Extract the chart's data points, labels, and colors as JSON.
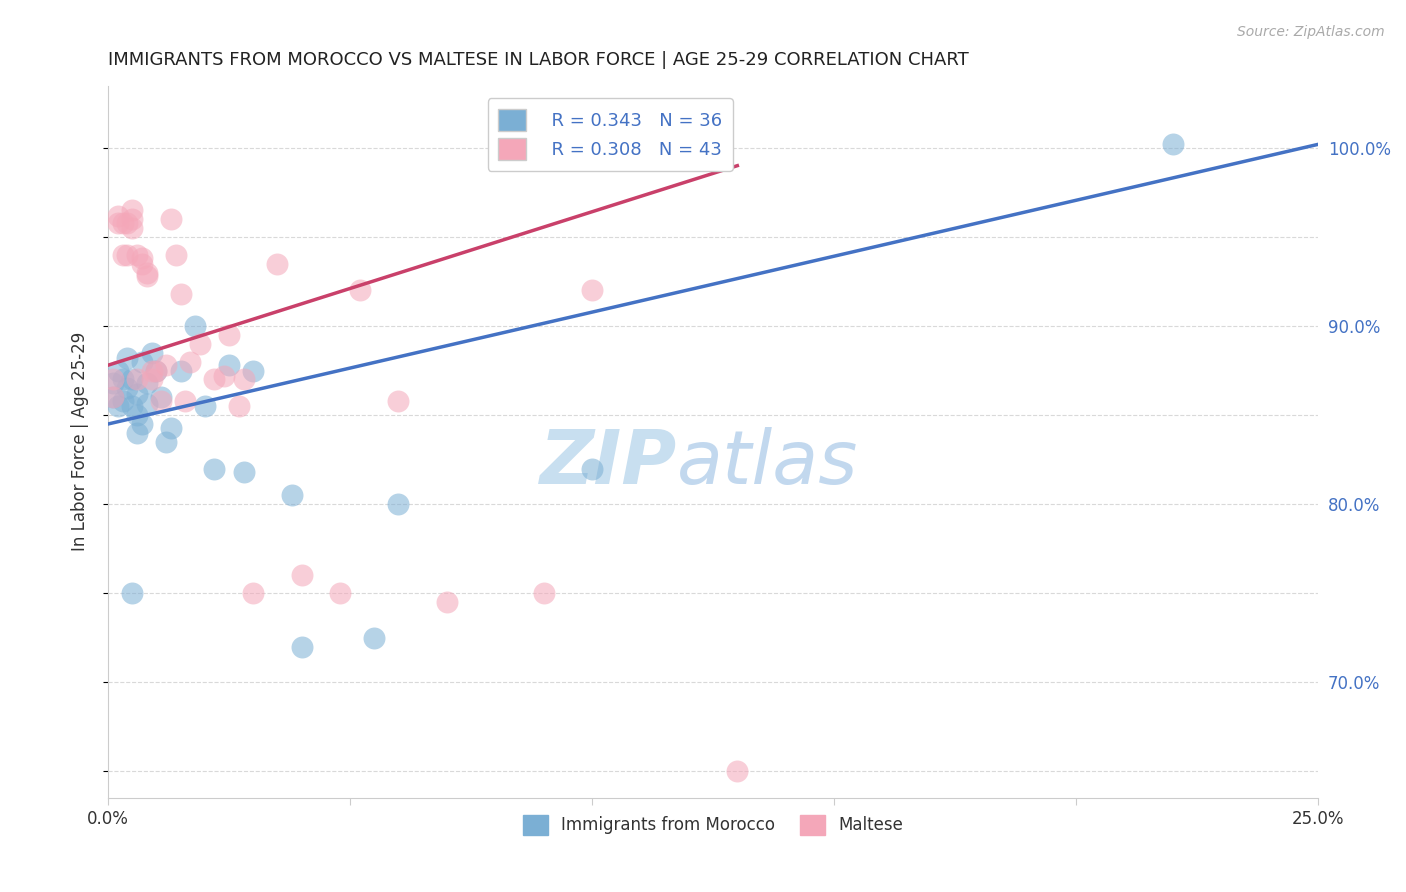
{
  "title": "IMMIGRANTS FROM MOROCCO VS MALTESE IN LABOR FORCE | AGE 25-29 CORRELATION CHART",
  "source": "Source: ZipAtlas.com",
  "ylabel": "In Labor Force | Age 25-29",
  "xlim": [
    0.0,
    0.25
  ],
  "ylim": [
    0.635,
    1.035
  ],
  "x_ticks": [
    0.0,
    0.05,
    0.1,
    0.15,
    0.2,
    0.25
  ],
  "y_ticks_right": [
    0.7,
    0.8,
    0.9,
    1.0
  ],
  "y_tick_labels_right": [
    "70.0%",
    "80.0%",
    "90.0%",
    "100.0%"
  ],
  "morocco_color": "#7bafd4",
  "maltese_color": "#f4a7b9",
  "morocco_line_color": "#4472C4",
  "maltese_line_color": "#C9406A",
  "legend_r_morocco": "R = 0.343",
  "legend_n_morocco": "N = 36",
  "legend_r_maltese": "R = 0.308",
  "legend_n_maltese": "N = 43",
  "legend_label_morocco": "Immigrants from Morocco",
  "legend_label_maltese": "Maltese",
  "morocco_x": [
    0.001,
    0.001,
    0.002,
    0.002,
    0.003,
    0.003,
    0.004,
    0.004,
    0.005,
    0.005,
    0.006,
    0.006,
    0.007,
    0.008,
    0.008,
    0.009,
    0.01,
    0.011,
    0.012,
    0.013,
    0.015,
    0.018,
    0.02,
    0.022,
    0.025,
    0.028,
    0.03,
    0.038,
    0.04,
    0.055,
    0.06,
    0.1,
    0.005,
    0.006,
    0.007,
    0.22
  ],
  "morocco_y": [
    0.868,
    0.86,
    0.875,
    0.855,
    0.87,
    0.858,
    0.882,
    0.865,
    0.87,
    0.855,
    0.862,
    0.85,
    0.845,
    0.868,
    0.856,
    0.885,
    0.875,
    0.86,
    0.835,
    0.843,
    0.875,
    0.9,
    0.855,
    0.82,
    0.878,
    0.818,
    0.875,
    0.805,
    0.72,
    0.725,
    0.8,
    0.82,
    0.75,
    0.84,
    0.88,
    1.002
  ],
  "maltese_x": [
    0.001,
    0.001,
    0.002,
    0.002,
    0.003,
    0.003,
    0.004,
    0.004,
    0.005,
    0.005,
    0.005,
    0.006,
    0.006,
    0.007,
    0.007,
    0.008,
    0.008,
    0.009,
    0.009,
    0.01,
    0.011,
    0.012,
    0.013,
    0.014,
    0.015,
    0.016,
    0.017,
    0.019,
    0.022,
    0.024,
    0.025,
    0.027,
    0.028,
    0.03,
    0.035,
    0.04,
    0.048,
    0.052,
    0.06,
    0.07,
    0.09,
    0.1,
    0.13
  ],
  "maltese_y": [
    0.87,
    0.86,
    0.962,
    0.958,
    0.958,
    0.94,
    0.958,
    0.94,
    0.96,
    0.955,
    0.965,
    0.87,
    0.94,
    0.935,
    0.938,
    0.928,
    0.93,
    0.87,
    0.875,
    0.875,
    0.858,
    0.878,
    0.96,
    0.94,
    0.918,
    0.858,
    0.88,
    0.89,
    0.87,
    0.872,
    0.895,
    0.855,
    0.87,
    0.75,
    0.935,
    0.76,
    0.75,
    0.92,
    0.858,
    0.745,
    0.75,
    0.92,
    0.65
  ],
  "morocco_line_x0": 0.0,
  "morocco_line_y0": 0.845,
  "morocco_line_x1": 0.25,
  "morocco_line_y1": 1.002,
  "maltese_line_x0": 0.0,
  "maltese_line_y0": 0.878,
  "maltese_line_x1": 0.13,
  "maltese_line_y1": 0.99,
  "background_color": "#ffffff",
  "grid_color": "#d9d9d9",
  "watermark_zip": "ZIP",
  "watermark_atlas": "atlas",
  "watermark_color": "#c8dff0"
}
